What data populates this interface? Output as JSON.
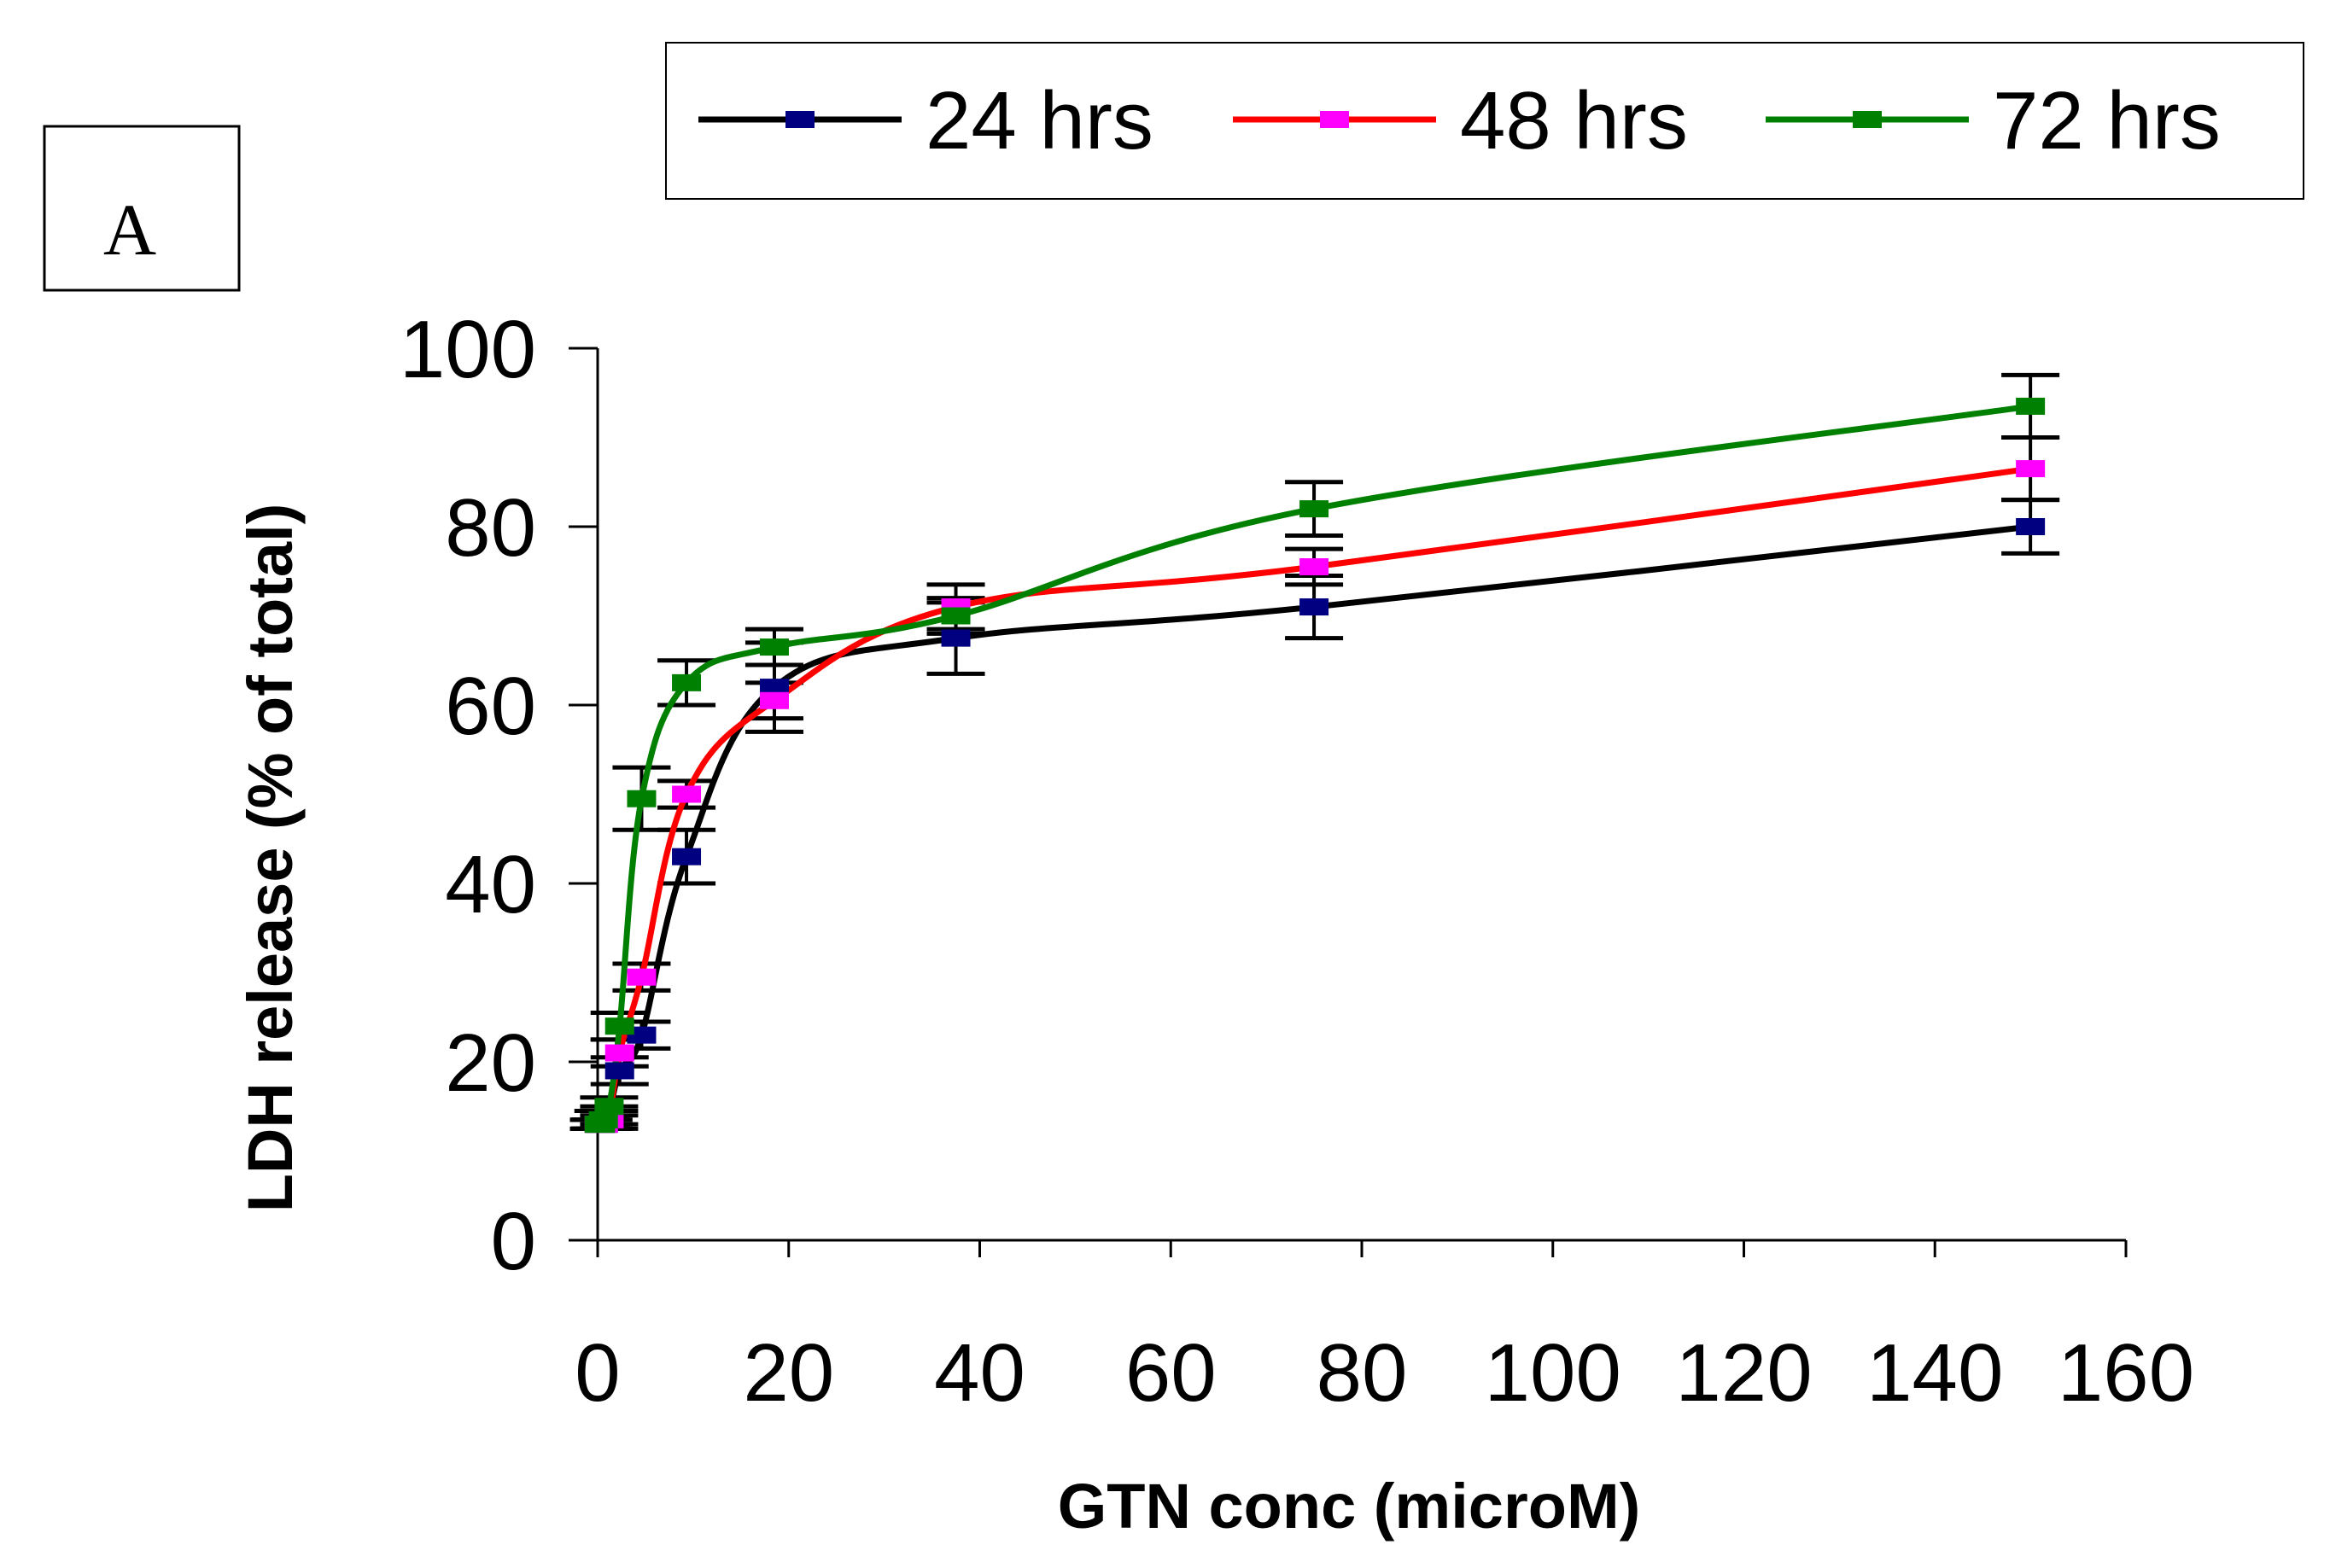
{
  "panel_label": "A",
  "chart_data": {
    "type": "line",
    "xlabel": "GTN conc (microM)",
    "ylabel": "LDH release (% of total)",
    "xlim": [
      0,
      160
    ],
    "ylim": [
      0,
      100
    ],
    "x_ticks": [
      "0",
      "20",
      "40",
      "60",
      "80",
      "100",
      "120",
      "140",
      "160"
    ],
    "y_ticks": [
      "0",
      "20",
      "40",
      "60",
      "80",
      "100"
    ],
    "grid": false,
    "legend_position": "top",
    "x": [
      0.15,
      0.3,
      0.6,
      1.2,
      2.3,
      4.6,
      9.3,
      18.5,
      37.5,
      75,
      150
    ],
    "series": [
      {
        "name": "24 hrs",
        "color": "#000000",
        "marker_color": "#000080",
        "values": [
          13,
          13,
          13,
          14,
          19,
          23,
          43,
          62,
          67.5,
          71,
          80
        ],
        "errors": [
          0.5,
          0.5,
          0.5,
          1,
          1.5,
          1.5,
          3,
          5,
          4,
          3.5,
          3
        ]
      },
      {
        "name": "48 hrs",
        "color": "#ff0000",
        "marker_color": "#ff00ff",
        "values": [
          13,
          13,
          13,
          13.5,
          21,
          29.5,
          50,
          60.5,
          71,
          75.5,
          86.5
        ],
        "errors": [
          0.5,
          0.5,
          0.5,
          1,
          1.5,
          1.5,
          1.5,
          2,
          2.5,
          2,
          3.5
        ]
      },
      {
        "name": "72 hrs",
        "color": "#008000",
        "marker_color": "#008000",
        "values": [
          13,
          13,
          13.5,
          15,
          24,
          49.5,
          62.5,
          66.5,
          70,
          82,
          93.5
        ],
        "errors": [
          0.5,
          0.5,
          1,
          1,
          1.5,
          3.5,
          2.5,
          2,
          2,
          3,
          3.5
        ]
      }
    ]
  }
}
